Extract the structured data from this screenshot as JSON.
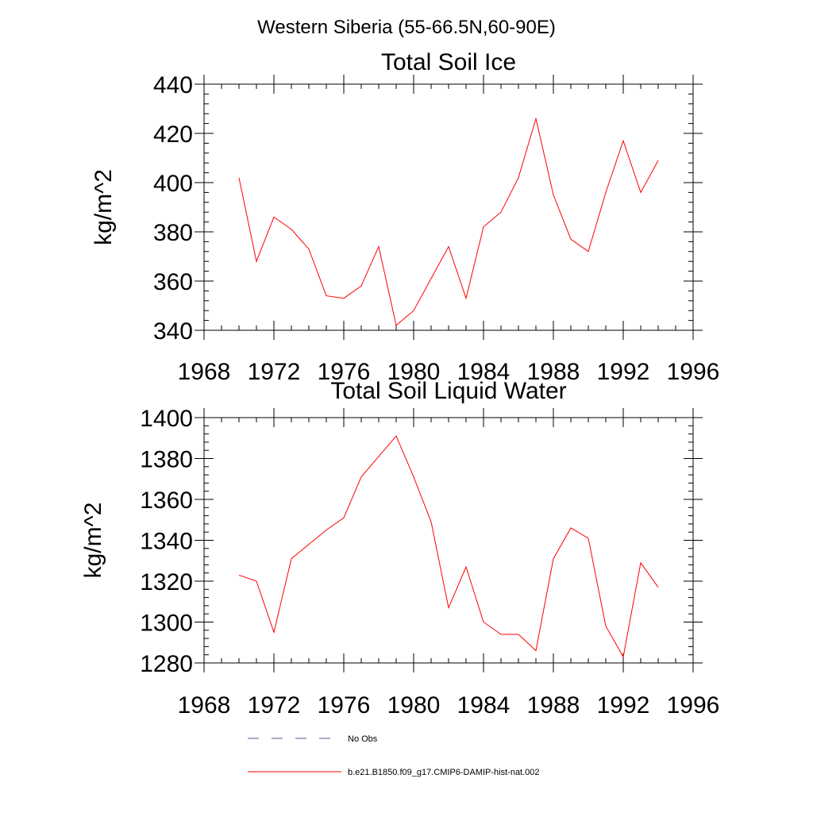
{
  "figure": {
    "title": "Western Siberia (55-66.5N,60-90E)"
  },
  "chart_data": [
    {
      "type": "line",
      "title": "Total Soil Ice",
      "xlabel": "",
      "ylabel": "kg/m^2",
      "xlim": [
        1968,
        1996
      ],
      "ylim": [
        340,
        440
      ],
      "x_ticks": [
        1968,
        1972,
        1976,
        1980,
        1984,
        1988,
        1992,
        1996
      ],
      "y_ticks": [
        340,
        360,
        380,
        400,
        420,
        440
      ],
      "grid": false,
      "series": [
        {
          "name": "b.e21.B1850.f09_g17.CMIP6-DAMIP-hist-nat.002",
          "color": "#ff0000",
          "x": [
            1970,
            1971,
            1972,
            1973,
            1974,
            1975,
            1976,
            1977,
            1978,
            1979,
            1980,
            1981,
            1982,
            1983,
            1984,
            1985,
            1986,
            1987,
            1988,
            1989,
            1990,
            1991,
            1992,
            1993,
            1994
          ],
          "values": [
            402,
            368,
            386,
            381,
            373,
            354,
            353,
            358,
            374,
            342,
            348,
            361,
            374,
            353,
            382,
            388,
            402,
            426,
            395,
            377,
            372,
            396,
            417,
            396,
            409
          ]
        }
      ]
    },
    {
      "type": "line",
      "title": "Total Soil Liquid Water",
      "xlabel": "",
      "ylabel": "kg/m^2",
      "xlim": [
        1968,
        1996
      ],
      "ylim": [
        1280,
        1400
      ],
      "x_ticks": [
        1968,
        1972,
        1976,
        1980,
        1984,
        1988,
        1992,
        1996
      ],
      "y_ticks": [
        1280,
        1300,
        1320,
        1340,
        1360,
        1380,
        1400
      ],
      "grid": false,
      "series": [
        {
          "name": "b.e21.B1850.f09_g17.CMIP6-DAMIP-hist-nat.002",
          "color": "#ff0000",
          "x": [
            1970,
            1971,
            1972,
            1973,
            1974,
            1975,
            1976,
            1977,
            1978,
            1979,
            1980,
            1981,
            1982,
            1983,
            1984,
            1985,
            1986,
            1987,
            1988,
            1989,
            1990,
            1991,
            1992,
            1993,
            1994
          ],
          "values": [
            1323,
            1320,
            1295,
            1331,
            1338,
            1345,
            1351,
            1371,
            1381,
            1391,
            1371,
            1349,
            1307,
            1327,
            1300,
            1294,
            1294,
            1286,
            1331,
            1346,
            1341,
            1298,
            1283,
            1329,
            1317
          ]
        }
      ]
    }
  ],
  "legend": {
    "placement": "bottom-center",
    "items": [
      {
        "label": "No Obs",
        "color": "#4b5a8c",
        "style": "dashed"
      },
      {
        "label": "b.e21.B1850.f09_g17.CMIP6-DAMIP-hist-nat.002",
        "color": "#ff0000",
        "style": "solid"
      }
    ]
  }
}
